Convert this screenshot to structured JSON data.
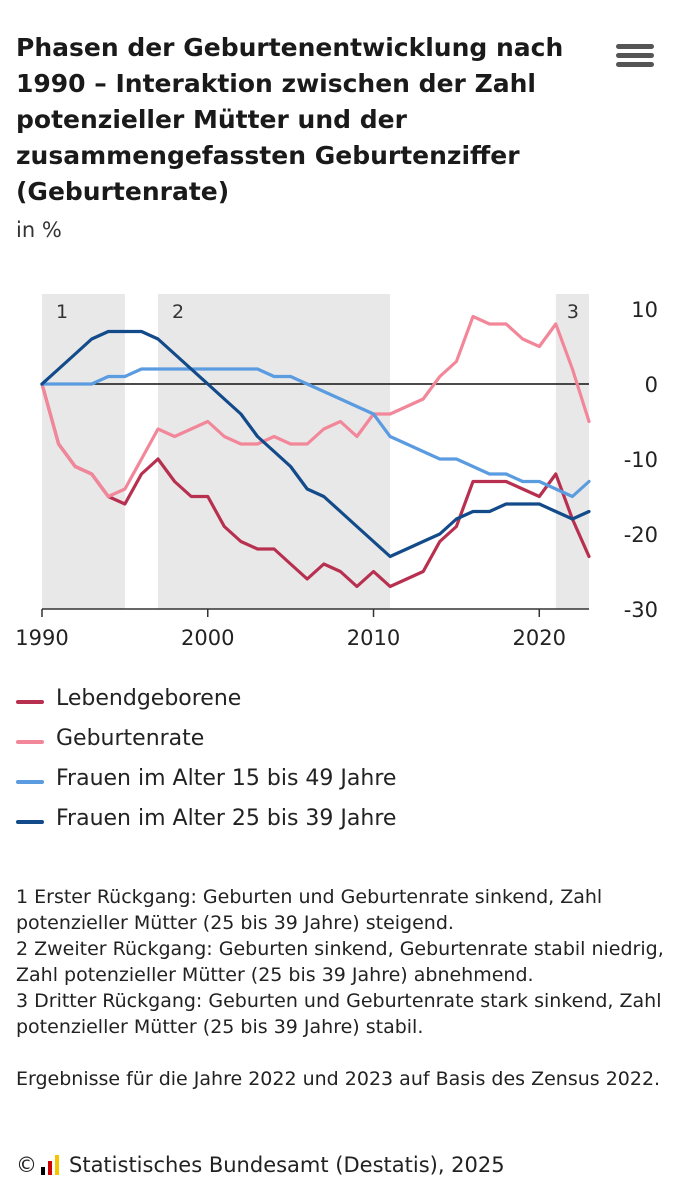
{
  "header": {
    "title": "Phasen der Geburtenentwicklung nach 1990 – Interaktion zwischen der Zahl potenzieller Mütter und der zusammengefassten Geburtenziffer (Geburtenrate)",
    "unit": "in %",
    "menu_icon": "hamburger-menu-icon"
  },
  "chart_data": {
    "type": "line",
    "title": "Phasen der Geburtenentwicklung nach 1990 – Interaktion zwischen der Zahl potenzieller Mütter und der zusammengefassten Geburtenziffer (Geburtenrate)",
    "ylabel": "in %",
    "xlabel": "",
    "xlim": [
      1990,
      2023
    ],
    "ylim": [
      -30,
      12
    ],
    "x_ticks": [
      "1990",
      "2000",
      "2010",
      "2020"
    ],
    "y_ticks": [
      "10",
      "0",
      "-10",
      "-20",
      "-30"
    ],
    "grid": false,
    "legend_position": "bottom-left",
    "phases": [
      {
        "label": "1",
        "start": 1990,
        "end": 1995
      },
      {
        "label": "2",
        "start": 1997,
        "end": 2011
      },
      {
        "label": "3",
        "start": 2021,
        "end": 2023
      }
    ],
    "x": [
      1990,
      1991,
      1992,
      1993,
      1994,
      1995,
      1996,
      1997,
      1998,
      1999,
      2000,
      2001,
      2002,
      2003,
      2004,
      2005,
      2006,
      2007,
      2008,
      2009,
      2010,
      2011,
      2012,
      2013,
      2014,
      2015,
      2016,
      2017,
      2018,
      2019,
      2020,
      2021,
      2022,
      2023
    ],
    "series": [
      {
        "name": "Lebendgeborene",
        "color": "#b8304f",
        "values": [
          0,
          -8,
          -11,
          -12,
          -15,
          -16,
          -12,
          -10,
          -13,
          -15,
          -15,
          -19,
          -21,
          -22,
          -22,
          -24,
          -26,
          -24,
          -25,
          -27,
          -25,
          -27,
          -26,
          -25,
          -21,
          -19,
          -13,
          -13,
          -13,
          -14,
          -15,
          -12,
          -18,
          -23
        ]
      },
      {
        "name": "Geburtenrate",
        "color": "#f2879a",
        "values": [
          0,
          -8,
          -11,
          -12,
          -15,
          -14,
          -10,
          -6,
          -7,
          -6,
          -5,
          -7,
          -8,
          -8,
          -7,
          -8,
          -8,
          -6,
          -5,
          -7,
          -4,
          -4,
          -3,
          -2,
          1,
          3,
          9,
          8,
          8,
          6,
          5,
          8,
          2,
          -5
        ]
      },
      {
        "name": "Frauen im Alter 15 bis 49 Jahre",
        "color": "#5b9be0",
        "values": [
          0,
          0,
          0,
          0,
          1,
          1,
          2,
          2,
          2,
          2,
          2,
          2,
          2,
          2,
          1,
          1,
          0,
          -1,
          -2,
          -3,
          -4,
          -7,
          -8,
          -9,
          -10,
          -10,
          -11,
          -12,
          -12,
          -13,
          -13,
          -14,
          -15,
          -13
        ]
      },
      {
        "name": "Frauen im Alter 25 bis 39 Jahre",
        "color": "#124a8a",
        "values": [
          0,
          2,
          4,
          6,
          7,
          7,
          7,
          6,
          4,
          2,
          0,
          -2,
          -4,
          -7,
          -9,
          -11,
          -14,
          -15,
          -17,
          -19,
          -21,
          -23,
          -22,
          -21,
          -20,
          -18,
          -17,
          -17,
          -16,
          -16,
          -16,
          -17,
          -18,
          -17
        ]
      }
    ]
  },
  "legend": [
    {
      "label": "Lebendgeborene",
      "color": "#b8304f"
    },
    {
      "label": "Geburtenrate",
      "color": "#f2879a"
    },
    {
      "label": "Frauen im Alter 15 bis 49 Jahre",
      "color": "#5b9be0"
    },
    {
      "label": "Frauen im Alter 25 bis 39 Jahre",
      "color": "#124a8a"
    }
  ],
  "notes": {
    "phase1": "1 Erster Rückgang: Geburten und Geburtenrate sinkend, Zahl potenzieller Mütter (25 bis 39 Jahre) steigend.",
    "phase2": "2 Zweiter Rückgang: Geburten sinkend, Geburtenrate stabil niedrig, Zahl potenzieller Mütter (25 bis 39 Jahre) abnehmend.",
    "phase3": "3 Dritter Rückgang: Geburten und Geburtenrate stark sinkend, Zahl potenzieller Mütter (25 bis 39 Jahre) stabil.",
    "census": "Ergebnisse für die Jahre 2022 und 2023 auf Basis des Zensus 2022."
  },
  "source": {
    "copyright": "©",
    "text": "Statistisches Bundesamt (Destatis), 2025",
    "logo_icon": "destatis-logo-icon",
    "logo_colors": [
      "#000000",
      "#d00000",
      "#f5c400"
    ]
  }
}
